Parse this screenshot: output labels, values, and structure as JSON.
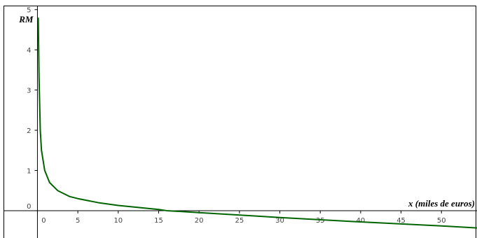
{
  "chart_data": {
    "type": "line",
    "ylabel": "RM",
    "xlabel": "x (miles de euros)",
    "x": [
      0.1,
      0.2,
      0.35,
      0.5,
      0.9,
      1.5,
      2.5,
      4,
      5,
      7.5,
      10,
      15,
      16,
      20,
      30,
      40,
      50,
      54.4
    ],
    "values": [
      4.8,
      3.3,
      2,
      1.5,
      1,
      0.7,
      0.5,
      0.35,
      0.3,
      0.2,
      0.13,
      0.03,
      0,
      -0.05,
      -0.17,
      -0.28,
      -0.38,
      -0.43
    ],
    "color": "#006400",
    "xlim": [
      -4.2,
      54.4
    ],
    "ylim": [
      -0.68,
      5.1
    ],
    "xticks": [
      0,
      5,
      10,
      15,
      20,
      25,
      30,
      35,
      40,
      45,
      50
    ],
    "yticks": [
      0,
      1,
      2,
      3,
      4,
      5
    ]
  }
}
